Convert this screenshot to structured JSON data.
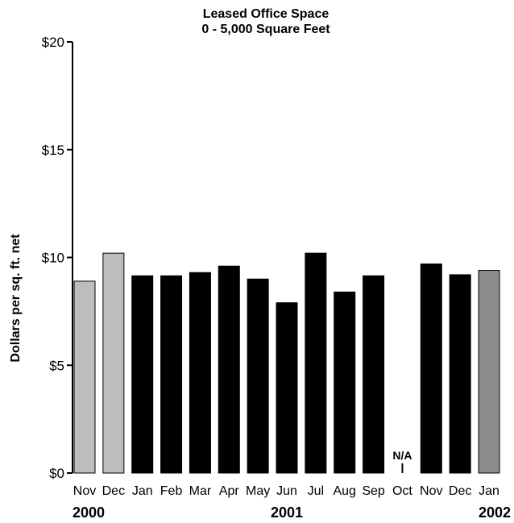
{
  "chart_data": {
    "type": "bar",
    "title": "Leased Office Space",
    "subtitle": "0 - 5,000 Square Feet",
    "xlabel": "",
    "ylabel": "Dollars per sq. ft. net",
    "ylim": [
      0,
      20
    ],
    "y_ticks": [
      "$0",
      "$5",
      "$10",
      "$15",
      "$20"
    ],
    "y_tick_values": [
      0,
      5,
      10,
      15,
      20
    ],
    "grid": false,
    "categories": [
      "Nov",
      "Dec",
      "Jan",
      "Feb",
      "Mar",
      "Apr",
      "May",
      "Jun",
      "Jul",
      "Aug",
      "Sep",
      "Oct",
      "Nov",
      "Dec",
      "Jan"
    ],
    "values": [
      8.9,
      10.2,
      9.15,
      9.15,
      9.3,
      9.6,
      9.0,
      7.9,
      10.2,
      8.4,
      9.15,
      null,
      9.7,
      9.2,
      9.4
    ],
    "bar_colors": [
      "#bdbdbd",
      "#bdbdbd",
      "#000000",
      "#000000",
      "#000000",
      "#000000",
      "#000000",
      "#000000",
      "#000000",
      "#000000",
      "#000000",
      null,
      "#000000",
      "#000000",
      "#8c8c8c"
    ],
    "annotations": [
      {
        "category_index": 11,
        "text": "N/A"
      }
    ],
    "year_labels": [
      {
        "category_index": 0,
        "text": "2000"
      },
      {
        "category_index": 7,
        "text": "2001"
      },
      {
        "category_index": 14,
        "text": "2002"
      }
    ]
  }
}
